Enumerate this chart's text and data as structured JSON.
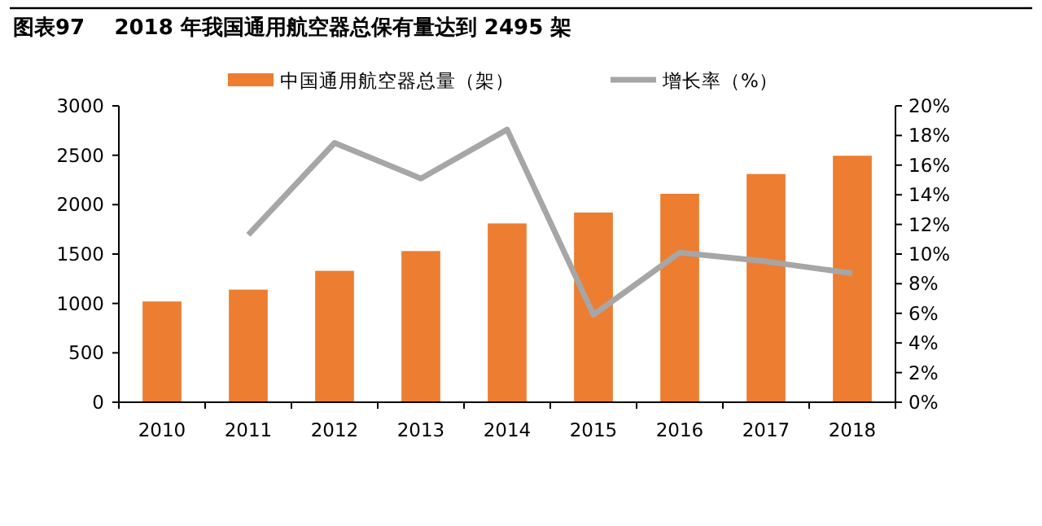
{
  "chart_data": {
    "type": "bar",
    "title": "图表97    2018 年我国通用航空器总保有量达到 2495 架",
    "categories": [
      "2010",
      "2011",
      "2012",
      "2013",
      "2014",
      "2015",
      "2016",
      "2017",
      "2018"
    ],
    "series": [
      {
        "name": "中国通用航空器总量（架）",
        "color": "#ed7d31",
        "values": [
          1020,
          1140,
          1330,
          1530,
          1810,
          1920,
          2110,
          2310,
          2495
        ]
      },
      {
        "name": "增长率（%）",
        "type": "line",
        "axis": "y2",
        "color": "#a6a6a6",
        "values": [
          null,
          11.3,
          17.5,
          15.1,
          18.4,
          5.9,
          10.1,
          9.5,
          8.7
        ]
      }
    ],
    "ylim": [
      0,
      3000
    ],
    "yticks": [
      0,
      500,
      1000,
      1500,
      2000,
      2500,
      3000
    ],
    "y2lim": [
      0,
      20
    ],
    "y2ticks": [
      {
        "value": 0,
        "label": "0%"
      },
      {
        "value": 2,
        "label": "2%"
      },
      {
        "value": 4,
        "label": "4%"
      },
      {
        "value": 6,
        "label": "6%"
      },
      {
        "value": 8,
        "label": "8%"
      },
      {
        "value": 10,
        "label": "10%"
      },
      {
        "value": 12,
        "label": "12%"
      },
      {
        "value": 14,
        "label": "14%"
      },
      {
        "value": 16,
        "label": "16%"
      },
      {
        "value": 18,
        "label": "18%"
      },
      {
        "value": 20,
        "label": "20%"
      }
    ],
    "legend": "top",
    "marker": "none",
    "line_style": "solid"
  }
}
